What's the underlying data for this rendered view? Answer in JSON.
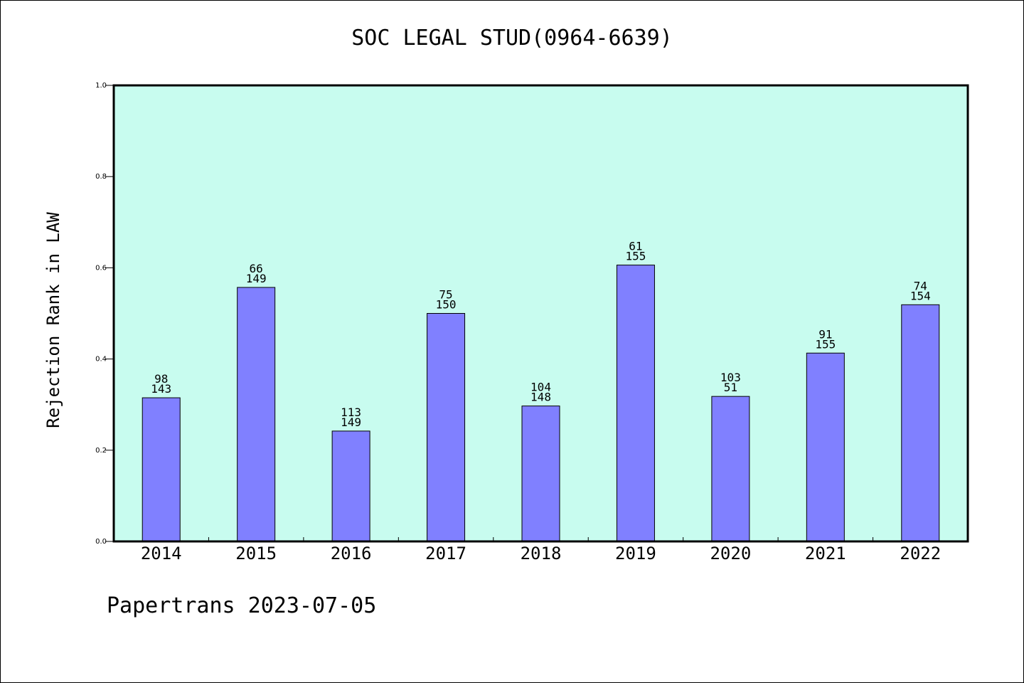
{
  "chart_data": {
    "type": "bar",
    "title": "SOC LEGAL STUD(0964-6639)",
    "xlabel": "",
    "ylabel": "Rejection Rank in LAW",
    "categories": [
      "2014",
      "2015",
      "2016",
      "2017",
      "2018",
      "2019",
      "2020",
      "2021",
      "2022"
    ],
    "values": [
      0.315,
      0.557,
      0.242,
      0.5,
      0.297,
      0.606,
      0.318,
      0.413,
      0.519
    ],
    "annotations_top": [
      "98",
      "66",
      "113",
      "75",
      "104",
      "61",
      "103",
      "91",
      "74"
    ],
    "annotations_bottom": [
      "143",
      "149",
      "149",
      "150",
      "148",
      "155",
      "51",
      "155",
      "154"
    ],
    "ylim": [
      0,
      1.0
    ],
    "yticks": [
      "0.0",
      "0.2",
      "0.4",
      "0.6",
      "0.8",
      "1.0"
    ],
    "grid": false,
    "legend": "none",
    "colors": {
      "bar": "#8080ff",
      "plot_bg": "#c8fcef",
      "axis": "#000000"
    }
  },
  "footer": {
    "text": "Papertrans 2023-07-05"
  }
}
